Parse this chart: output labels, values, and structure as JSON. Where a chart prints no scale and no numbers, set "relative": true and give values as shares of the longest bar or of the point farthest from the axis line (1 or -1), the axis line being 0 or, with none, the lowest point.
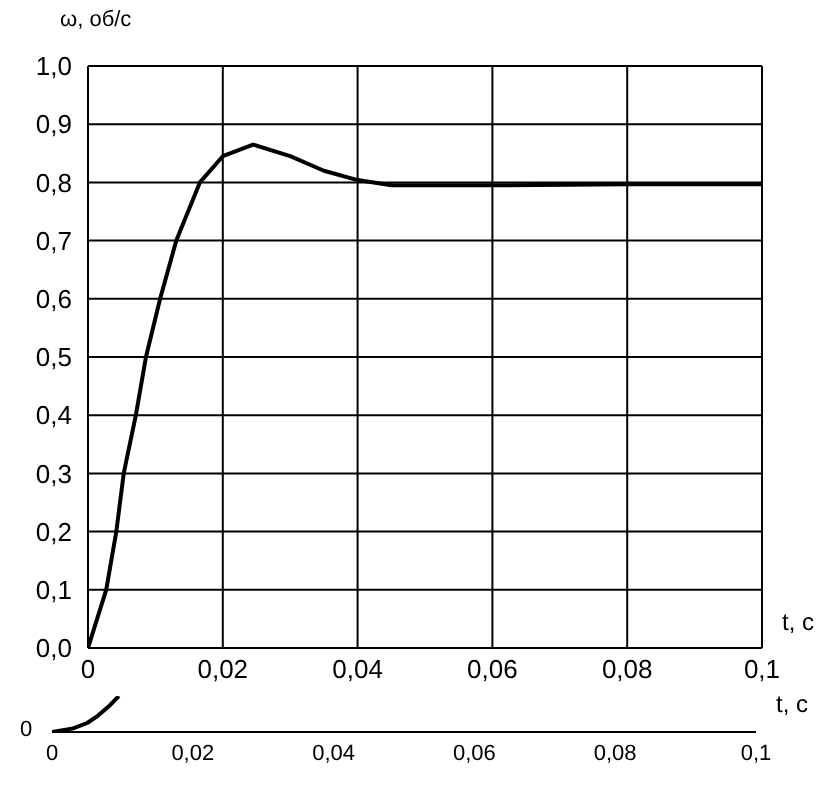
{
  "chart_data": [
    {
      "type": "line",
      "ylabel": "ω, об/с",
      "xlabel": "t, c",
      "xlim": [
        0,
        0.1
      ],
      "xticks": [
        {
          "value": 0,
          "label": "0"
        },
        {
          "value": 0.02,
          "label": "0,02"
        },
        {
          "value": 0.04,
          "label": "0,04"
        },
        {
          "value": 0.06,
          "label": "0,06"
        },
        {
          "value": 0.08,
          "label": "0,08"
        },
        {
          "value": 0.1,
          "label": "0,1"
        }
      ],
      "ylim": [
        0,
        1
      ],
      "yticks": [
        {
          "value": 0,
          "label": "0,0"
        },
        {
          "value": 0.1,
          "label": "0,1"
        },
        {
          "value": 0.2,
          "label": "0,2"
        },
        {
          "value": 0.3,
          "label": "0,3"
        },
        {
          "value": 0.4,
          "label": "0,4"
        },
        {
          "value": 0.5,
          "label": "0,5"
        },
        {
          "value": 0.6,
          "label": "0,6"
        },
        {
          "value": 0.7,
          "label": "0,7"
        },
        {
          "value": 0.8,
          "label": "0,8"
        },
        {
          "value": 0.9,
          "label": "0,9"
        },
        {
          "value": 1,
          "label": "1,0"
        }
      ],
      "grid": true,
      "marker": "none",
      "line_style": "solid",
      "series": [
        {
          "color": "#000000",
          "x": [
            0,
            0.0027,
            0.0042,
            0.0053,
            0.0071,
            0.0086,
            0.0107,
            0.0131,
            0.0166,
            0.02,
            0.0245,
            0.03,
            0.035,
            0.04,
            0.045,
            0.06,
            0.08,
            0.1
          ],
          "values": [
            0,
            0.1,
            0.2,
            0.3,
            0.4,
            0.5,
            0.6,
            0.7,
            0.8,
            0.845,
            0.865,
            0.845,
            0.82,
            0.804,
            0.795,
            0.795,
            0.797,
            0.797
          ]
        }
      ]
    },
    {
      "type": "line",
      "relative": true,
      "xlabel": "t, c",
      "annotations": [
        "0"
      ],
      "xlim": [
        0,
        0.1
      ],
      "xticks": [
        {
          "value": 0,
          "label": "0"
        },
        {
          "value": 0.02,
          "label": "0,02"
        },
        {
          "value": 0.04,
          "label": "0,04"
        },
        {
          "value": 0.06,
          "label": "0,06"
        },
        {
          "value": 0.08,
          "label": "0,08"
        },
        {
          "value": 0.1,
          "label": "0,1"
        }
      ],
      "marker": "none",
      "line_style": "solid",
      "series": [
        {
          "color": "#000000",
          "x": [
            0,
            0.003,
            0.005,
            0.0065,
            0.008,
            0.0095
          ],
          "values": [
            0,
            0.1,
            0.25,
            0.45,
            0.7,
            1
          ]
        }
      ]
    }
  ]
}
